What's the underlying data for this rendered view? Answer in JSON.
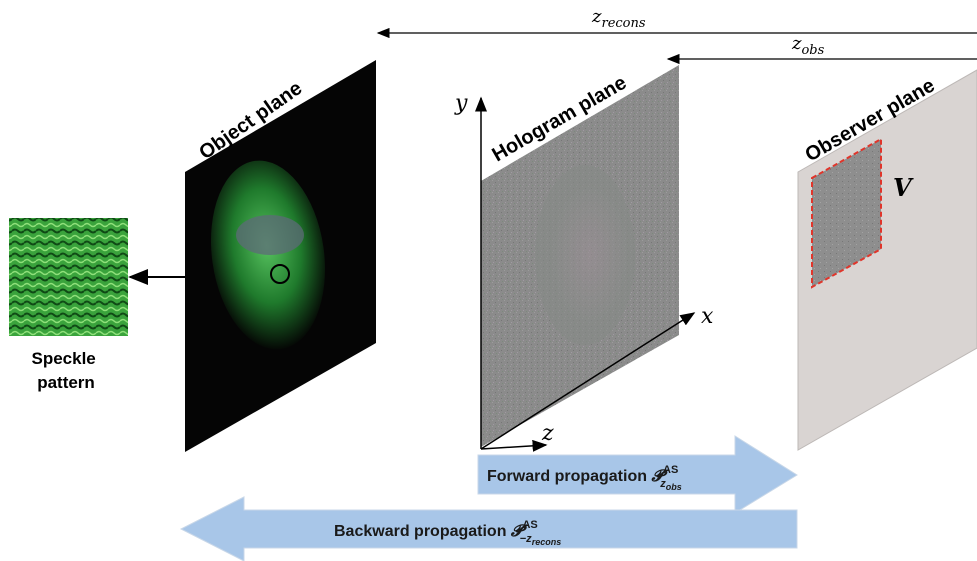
{
  "labels": {
    "object_plane": "Object plane",
    "hologram_plane": "Hologram plane",
    "observer_plane": "Observer plane",
    "speckle_line1": "Speckle",
    "speckle_line2": "pattern",
    "viewing_window": "V"
  },
  "distances": {
    "z_recons_base": "z",
    "z_recons_sub": "recons",
    "z_obs_base": "z",
    "z_obs_sub": "obs"
  },
  "axes": {
    "y": "y",
    "x": "x",
    "z": "z"
  },
  "arrows": {
    "forward_text": "Forward propagation ",
    "forward_op": "𝓟",
    "forward_sup": "AS",
    "forward_sub_base": "z",
    "forward_sub_sub": "obs",
    "backward_text": "Backward propagation ",
    "backward_op": "𝓟",
    "backward_sup": "AS",
    "backward_sub_base": "−z",
    "backward_sub_sub": "recons"
  },
  "colors": {
    "arrow_fill": "#a8c6e8",
    "arrow_stroke": "#c8d7e8",
    "observer_fill": "#d9d4d2",
    "window_border": "#e0352b",
    "hologram_fill": "#8a8a8a",
    "object_green": "#2e9a3c"
  }
}
